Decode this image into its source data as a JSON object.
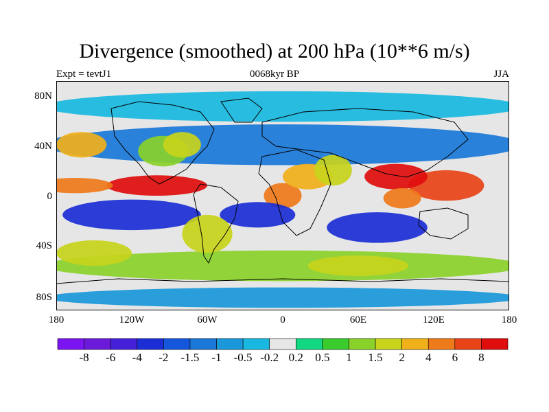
{
  "header": {
    "title": "Divergence (smoothed) at 200 hPa (10**6 m/s)",
    "left": "Expt = tevtJ1",
    "center": "0068kyr BP",
    "right": "JJA"
  },
  "axes": {
    "lat_labels": [
      "80N",
      "40N",
      "0",
      "40S",
      "80S"
    ],
    "lon_labels": [
      "180",
      "120W",
      "60W",
      "0",
      "60E",
      "120E",
      "180"
    ]
  },
  "colorbar": {
    "labels": [
      "-8",
      "-6",
      "-4",
      "-2",
      "-1.5",
      "-1",
      "-0.5",
      "-0.2",
      "0.2",
      "0.5",
      "1",
      "1.5",
      "2",
      "4",
      "6",
      "8"
    ],
    "colors": [
      "#7a14f0",
      "#6a1ad8",
      "#4520d8",
      "#1b2ed6",
      "#1457dc",
      "#1a78d8",
      "#1a98da",
      "#18b8e0",
      "#e6e6e6",
      "#12d884",
      "#3acb2d",
      "#8ad12a",
      "#c8d41c",
      "#f0b01a",
      "#ef7a1a",
      "#e84418",
      "#e00d0d"
    ]
  },
  "chart_data": {
    "type": "heatmap",
    "title": "Divergence (smoothed) at 200 hPa (10**6 m/s)",
    "subtitle": "0068kyr BP",
    "units": "10**6 m/s",
    "xrange": [
      -180,
      180
    ],
    "yrange": [
      -90,
      90
    ],
    "background": "#e6e6e6",
    "features": [
      {
        "name": "westerly-band-north",
        "lon": 0,
        "lat": 40,
        "lonRadius": 190,
        "latRadius": 16,
        "value": -1.2
      },
      {
        "name": "west-pacific-divergence",
        "lon": 130,
        "lat": 8,
        "lonRadius": 30,
        "latRadius": 12,
        "value": 6
      },
      {
        "name": "bay-of-bengal-divergence",
        "lon": 90,
        "lat": 15,
        "lonRadius": 25,
        "latRadius": 10,
        "value": 8
      },
      {
        "name": "southeast-asia-divergence",
        "lon": 95,
        "lat": -2,
        "lonRadius": 15,
        "latRadius": 8,
        "value": 4
      },
      {
        "name": "east-pacific-itcz",
        "lon": -100,
        "lat": 8,
        "lonRadius": 40,
        "latRadius": 8,
        "value": 8
      },
      {
        "name": "central-pacific-itcz",
        "lon": -165,
        "lat": 8,
        "lonRadius": 30,
        "latRadius": 6,
        "value": 4
      },
      {
        "name": "west-africa-divergence",
        "lon": 0,
        "lat": 0,
        "lonRadius": 15,
        "latRadius": 10,
        "value": 4
      },
      {
        "name": "sahel-divergence",
        "lon": 20,
        "lat": 15,
        "lonRadius": 20,
        "latRadius": 10,
        "value": 2
      },
      {
        "name": "arabian-divergence",
        "lon": 40,
        "lat": 20,
        "lonRadius": 15,
        "latRadius": 12,
        "value": 1.5
      },
      {
        "name": "south-pacific-convergence",
        "lon": -120,
        "lat": -15,
        "lonRadius": 55,
        "latRadius": 12,
        "value": -4
      },
      {
        "name": "south-atlantic-convergence",
        "lon": -20,
        "lat": -15,
        "lonRadius": 30,
        "latRadius": 10,
        "value": -4
      },
      {
        "name": "south-indian-convergence",
        "lon": 75,
        "lat": -25,
        "lonRadius": 40,
        "latRadius": 12,
        "value": -4
      },
      {
        "name": "southern-midlatitude-divergence",
        "lon": 0,
        "lat": -55,
        "lonRadius": 190,
        "latRadius": 12,
        "value": 1
      },
      {
        "name": "southern-america-divergence",
        "lon": -60,
        "lat": -30,
        "lonRadius": 20,
        "latRadius": 15,
        "value": 1.5
      },
      {
        "name": "north-pacific-divergence",
        "lon": -160,
        "lat": 40,
        "lonRadius": 20,
        "latRadius": 10,
        "value": 2
      },
      {
        "name": "north-america-divergence",
        "lon": -95,
        "lat": 35,
        "lonRadius": 20,
        "latRadius": 12,
        "value": 1
      },
      {
        "name": "north-atlantic-divergence",
        "lon": -80,
        "lat": 40,
        "lonRadius": 15,
        "latRadius": 10,
        "value": 1.5
      },
      {
        "name": "south-pacific-midlat",
        "lon": -150,
        "lat": -45,
        "lonRadius": 30,
        "latRadius": 10,
        "value": 1.5
      },
      {
        "name": "indian-midlat",
        "lon": 60,
        "lat": -55,
        "lonRadius": 40,
        "latRadius": 8,
        "value": 1.5
      },
      {
        "name": "polar-convergence-south",
        "lon": 0,
        "lat": -80,
        "lonRadius": 190,
        "latRadius": 8,
        "value": -1
      },
      {
        "name": "northern-polar-convergence",
        "lon": 0,
        "lat": 70,
        "lonRadius": 190,
        "latRadius": 12,
        "value": -0.5
      }
    ]
  }
}
